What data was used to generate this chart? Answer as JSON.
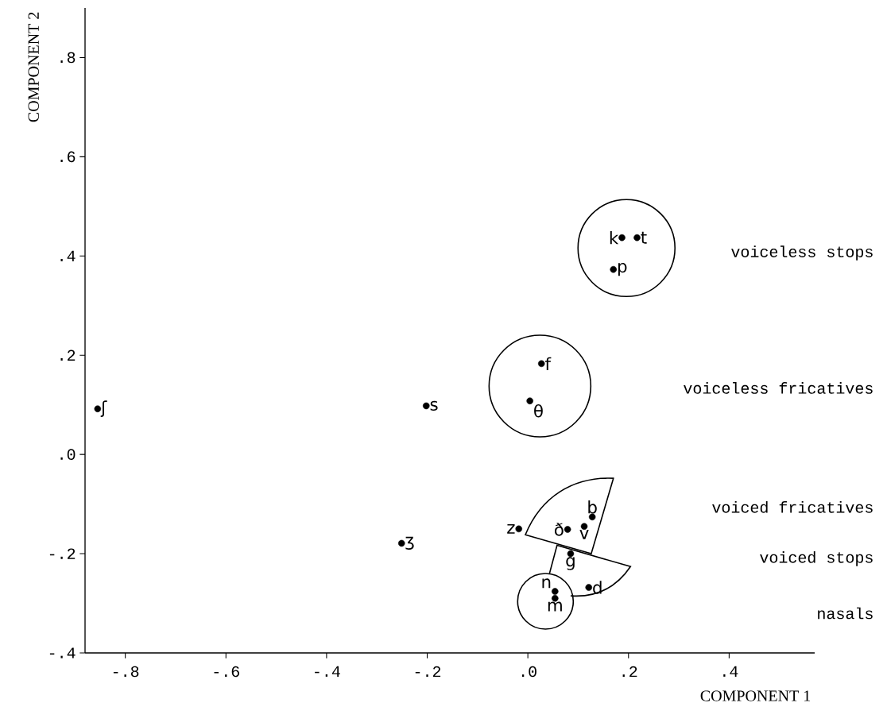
{
  "chart_data": {
    "type": "scatter",
    "xlabel": "COMPONENT 1",
    "ylabel": "COMPONENT 2",
    "xlim": [
      -0.88,
      0.57
    ],
    "ylim": [
      -0.4,
      0.9
    ],
    "xticks": [
      {
        "value": -0.8,
        "label": "-.8"
      },
      {
        "value": -0.6,
        "label": "-.6"
      },
      {
        "value": -0.4,
        "label": "-.4"
      },
      {
        "value": -0.2,
        "label": "-.2"
      },
      {
        "value": 0,
        "label": ".0"
      },
      {
        "value": 0.2,
        "label": ".2"
      },
      {
        "value": 0.4,
        "label": ".4"
      }
    ],
    "yticks": [
      {
        "value": -0.4,
        "label": "-.4"
      },
      {
        "value": -0.2,
        "label": "-.2"
      },
      {
        "value": 0,
        "label": ".0"
      },
      {
        "value": 0.2,
        "label": ".2"
      },
      {
        "value": 0.4,
        "label": ".4"
      },
      {
        "value": 0.6,
        "label": ".6"
      },
      {
        "value": 0.8,
        "label": ".8"
      }
    ],
    "marker": "circle",
    "series": [
      {
        "color": "#000000",
        "x": [
          -0.855,
          -0.202,
          -0.251,
          0.187,
          0.217,
          0.17,
          0.027,
          0.004,
          -0.018,
          0.079,
          0.112,
          0.128,
          0.085,
          0.121,
          0.054,
          0.054
        ],
        "values": [
          0.092,
          0.098,
          -0.179,
          0.437,
          0.437,
          0.373,
          0.183,
          0.108,
          -0.15,
          -0.151,
          -0.145,
          -0.126,
          -0.2,
          -0.268,
          -0.276,
          -0.29
        ]
      }
    ],
    "annotations": [
      {
        "text": "ʃ",
        "x": -0.855,
        "y": 0.092
      },
      {
        "text": "s",
        "x": -0.202,
        "y": 0.098
      },
      {
        "text": "ʒ",
        "x": -0.251,
        "y": -0.179
      },
      {
        "text": "k",
        "x": 0.187,
        "y": 0.437
      },
      {
        "text": "t",
        "x": 0.217,
        "y": 0.437
      },
      {
        "text": "p",
        "x": 0.17,
        "y": 0.373
      },
      {
        "text": "f",
        "x": 0.027,
        "y": 0.183
      },
      {
        "text": "θ",
        "x": 0.004,
        "y": 0.108
      },
      {
        "text": "z",
        "x": -0.018,
        "y": -0.15
      },
      {
        "text": "ð",
        "x": 0.079,
        "y": -0.151
      },
      {
        "text": "v",
        "x": 0.112,
        "y": -0.145
      },
      {
        "text": "b",
        "x": 0.128,
        "y": -0.126
      },
      {
        "text": "g",
        "x": 0.085,
        "y": -0.2
      },
      {
        "text": "d",
        "x": 0.121,
        "y": -0.268
      },
      {
        "text": "n",
        "x": 0.054,
        "y": -0.276
      },
      {
        "text": "m",
        "x": 0.054,
        "y": -0.29
      },
      "voiceless stops",
      "voiceless fricatives",
      "voiced fricatives",
      "voiced stops",
      "nasals"
    ]
  }
}
